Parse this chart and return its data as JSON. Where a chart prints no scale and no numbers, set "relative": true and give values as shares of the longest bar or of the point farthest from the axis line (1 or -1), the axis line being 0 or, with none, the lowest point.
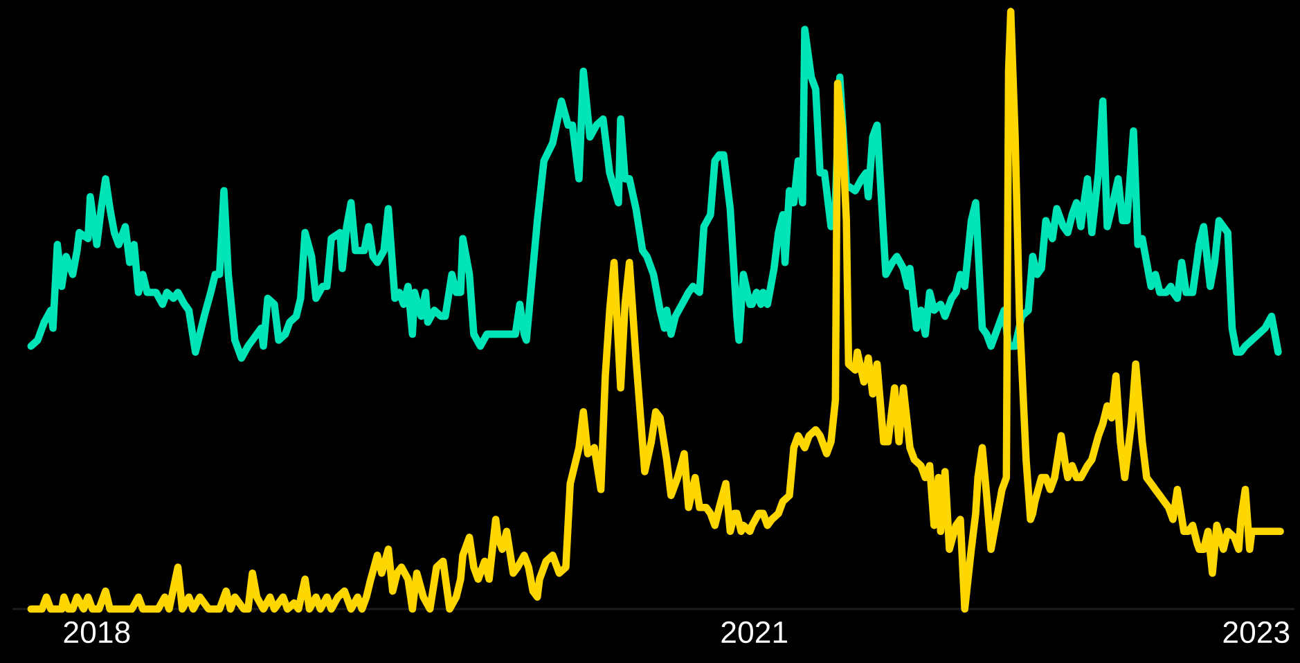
{
  "chart_data": {
    "type": "line",
    "relative": true,
    "xlim": [
      2017.62,
      2023.46
    ],
    "xticks": [
      2018,
      2021,
      {
        "value": 2023.29,
        "label": "2023"
      }
    ],
    "series": [
      {
        "color": "#00e5b8",
        "x": [
          2017.7,
          2017.73,
          2017.76,
          2017.79,
          2017.8,
          2017.82,
          2017.84,
          2017.86,
          2017.89,
          2017.91,
          2017.92,
          2017.96,
          2017.97,
          2018.0,
          2018.02,
          2018.04,
          2018.06,
          2018.08,
          2018.1,
          2018.13,
          2018.15,
          2018.17,
          2018.19,
          2018.21,
          2018.23,
          2018.27,
          2018.3,
          2018.32,
          2018.35,
          2018.37,
          2018.4,
          2018.42,
          2018.45,
          2018.49,
          2018.52,
          2018.54,
          2018.56,
          2018.58,
          2018.6,
          2018.63,
          2018.66,
          2018.69,
          2018.73,
          2018.75,
          2018.76,
          2018.78,
          2018.81,
          2018.83,
          2018.86,
          2018.88,
          2018.91,
          2018.93,
          2018.95,
          2018.98,
          2019.0,
          2019.03,
          2019.05,
          2019.07,
          2019.11,
          2019.12,
          2019.14,
          2019.16,
          2019.18,
          2019.2,
          2019.22,
          2019.24,
          2019.26,
          2019.28,
          2019.31,
          2019.33,
          2019.36,
          2019.38,
          2019.4,
          2019.42,
          2019.44,
          2019.45,
          2019.48,
          2019.5,
          2019.51,
          2019.54,
          2019.57,
          2019.59,
          2019.62,
          2019.64,
          2019.66,
          2019.67,
          2019.7,
          2019.72,
          2019.75,
          2019.78,
          2019.81,
          2019.84,
          2019.88,
          2019.91,
          2019.93,
          2019.95,
          2019.96,
          2020.01,
          2020.04,
          2020.08,
          2020.12,
          2020.15,
          2020.17,
          2020.2,
          2020.22,
          2020.25,
          2020.28,
          2020.31,
          2020.34,
          2020.38,
          2020.39,
          2020.41,
          2020.43,
          2020.46,
          2020.49,
          2020.51,
          2020.54,
          2020.57,
          2020.59,
          2020.6,
          2020.62,
          2020.64,
          2020.67,
          2020.7,
          2020.72,
          2020.75,
          2020.77,
          2020.8,
          2020.82,
          2020.84,
          2020.86,
          2020.89,
          2020.92,
          2020.93,
          2020.95,
          2020.98,
          2020.99,
          2021.01,
          2021.03,
          2021.04,
          2021.06,
          2021.09,
          2021.11,
          2021.13,
          2021.14,
          2021.16,
          2021.18,
          2021.2,
          2021.22,
          2021.23,
          2021.26,
          2021.28,
          2021.3,
          2021.32,
          2021.35,
          2021.37,
          2021.39,
          2021.42,
          2021.46,
          2021.49,
          2021.51,
          2021.52,
          2021.54,
          2021.56,
          2021.6,
          2021.63,
          2021.65,
          2021.68,
          2021.7,
          2021.71,
          2021.74,
          2021.76,
          2021.78,
          2021.8,
          2021.82,
          2021.85,
          2021.87,
          2021.9,
          2021.92,
          2021.94,
          2021.96,
          2021.99,
          2022.01,
          2022.04,
          2022.06,
          2022.08,
          2022.11,
          2022.14,
          2022.16,
          2022.19,
          2022.22,
          2022.25,
          2022.27,
          2022.29,
          2022.31,
          2022.33,
          2022.36,
          2022.38,
          2022.41,
          2022.43,
          2022.45,
          2022.47,
          2022.49,
          2022.5,
          2022.52,
          2022.54,
          2022.57,
          2022.59,
          2022.61,
          2022.63,
          2022.66,
          2022.68,
          2022.7,
          2022.73,
          2022.75,
          2022.77,
          2022.81,
          2022.83,
          2022.85,
          2022.88,
          2022.9,
          2022.91,
          2022.93,
          2022.95,
          2022.97,
          2023.0,
          2023.03,
          2023.05,
          2023.08,
          2023.1,
          2023.12,
          2023.16,
          2023.18,
          2023.2,
          2023.22,
          2023.24,
          2023.27,
          2023.3,
          2023.33,
          2023.36,
          2023.39
        ],
        "values": [
          0.44,
          0.45,
          0.48,
          0.5,
          0.47,
          0.61,
          0.54,
          0.59,
          0.56,
          0.6,
          0.63,
          0.62,
          0.69,
          0.61,
          0.67,
          0.72,
          0.67,
          0.63,
          0.61,
          0.64,
          0.58,
          0.61,
          0.53,
          0.56,
          0.53,
          0.53,
          0.51,
          0.53,
          0.52,
          0.53,
          0.51,
          0.5,
          0.43,
          0.49,
          0.53,
          0.56,
          0.56,
          0.7,
          0.56,
          0.45,
          0.42,
          0.44,
          0.46,
          0.47,
          0.44,
          0.52,
          0.51,
          0.45,
          0.46,
          0.48,
          0.49,
          0.52,
          0.63,
          0.59,
          0.52,
          0.54,
          0.54,
          0.62,
          0.63,
          0.57,
          0.64,
          0.68,
          0.6,
          0.6,
          0.6,
          0.64,
          0.59,
          0.58,
          0.6,
          0.67,
          0.52,
          0.53,
          0.51,
          0.54,
          0.46,
          0.53,
          0.49,
          0.53,
          0.48,
          0.5,
          0.49,
          0.49,
          0.56,
          0.53,
          0.53,
          0.62,
          0.56,
          0.46,
          0.44,
          0.46,
          0.46,
          0.46,
          0.46,
          0.46,
          0.51,
          0.46,
          0.45,
          0.65,
          0.75,
          0.78,
          0.85,
          0.81,
          0.81,
          0.72,
          0.9,
          0.79,
          0.81,
          0.82,
          0.73,
          0.68,
          0.82,
          0.72,
          0.72,
          0.67,
          0.6,
          0.59,
          0.56,
          0.5,
          0.47,
          0.5,
          0.46,
          0.49,
          0.51,
          0.53,
          0.54,
          0.53,
          0.64,
          0.66,
          0.75,
          0.76,
          0.76,
          0.67,
          0.49,
          0.45,
          0.56,
          0.51,
          0.51,
          0.53,
          0.51,
          0.53,
          0.51,
          0.57,
          0.63,
          0.66,
          0.58,
          0.7,
          0.68,
          0.75,
          0.68,
          0.97,
          0.89,
          0.87,
          0.73,
          0.73,
          0.64,
          0.68,
          0.89,
          0.71,
          0.7,
          0.72,
          0.73,
          0.69,
          0.79,
          0.81,
          0.56,
          0.58,
          0.59,
          0.57,
          0.54,
          0.57,
          0.47,
          0.5,
          0.46,
          0.53,
          0.5,
          0.51,
          0.49,
          0.52,
          0.53,
          0.56,
          0.54,
          0.65,
          0.68,
          0.47,
          0.46,
          0.44,
          0.47,
          0.5,
          0.44,
          0.44,
          0.49,
          0.5,
          0.59,
          0.56,
          0.57,
          0.65,
          0.62,
          0.67,
          0.64,
          0.63,
          0.66,
          0.68,
          0.64,
          0.67,
          0.72,
          0.63,
          0.73,
          0.85,
          0.64,
          0.67,
          0.72,
          0.65,
          0.65,
          0.8,
          0.61,
          0.62,
          0.54,
          0.56,
          0.53,
          0.53,
          0.54,
          0.53,
          0.52,
          0.58,
          0.53,
          0.53,
          0.61,
          0.64,
          0.54,
          0.58,
          0.65,
          0.63,
          0.47,
          0.43,
          0.43,
          0.44,
          0.45,
          0.46,
          0.47,
          0.49,
          0.43
        ]
      },
      {
        "color": "#ffd700",
        "x": [
          2017.7,
          2017.75,
          2017.77,
          2017.79,
          2017.84,
          2017.85,
          2017.87,
          2017.89,
          2017.91,
          2017.94,
          2017.96,
          2017.98,
          2018.01,
          2018.04,
          2018.06,
          2018.1,
          2018.16,
          2018.19,
          2018.21,
          2018.28,
          2018.31,
          2018.33,
          2018.37,
          2018.39,
          2018.42,
          2018.44,
          2018.47,
          2018.51,
          2018.56,
          2018.59,
          2018.61,
          2018.63,
          2018.67,
          2018.69,
          2018.71,
          2018.73,
          2018.76,
          2018.79,
          2018.81,
          2018.85,
          2018.87,
          2018.9,
          2018.92,
          2018.95,
          2018.97,
          2019.0,
          2019.02,
          2019.05,
          2019.07,
          2019.1,
          2019.13,
          2019.16,
          2019.19,
          2019.21,
          2019.23,
          2019.25,
          2019.28,
          2019.3,
          2019.33,
          2019.35,
          2019.37,
          2019.39,
          2019.42,
          2019.44,
          2019.46,
          2019.49,
          2019.52,
          2019.55,
          2019.58,
          2019.61,
          2019.64,
          2019.66,
          2019.67,
          2019.7,
          2019.72,
          2019.74,
          2019.77,
          2019.79,
          2019.82,
          2019.83,
          2019.85,
          2019.87,
          2019.9,
          2019.92,
          2019.95,
          2019.97,
          2019.99,
          2020.01,
          2020.02,
          2020.05,
          2020.08,
          2020.11,
          2020.14,
          2020.16,
          2020.2,
          2020.22,
          2020.24,
          2020.27,
          2020.3,
          2020.32,
          2020.34,
          2020.36,
          2020.39,
          2020.41,
          2020.43,
          2020.46,
          2020.5,
          2020.53,
          2020.55,
          2020.57,
          2020.6,
          2020.62,
          2020.65,
          2020.68,
          2020.7,
          2020.73,
          2020.75,
          2020.78,
          2020.8,
          2020.82,
          2020.84,
          2020.87,
          2020.89,
          2020.91,
          2020.92,
          2020.94,
          2020.95,
          2020.98,
          2020.99,
          2021.02,
          2021.04,
          2021.06,
          2021.08,
          2021.11,
          2021.13,
          2021.16,
          2021.18,
          2021.2,
          2021.23,
          2021.25,
          2021.28,
          2021.3,
          2021.33,
          2021.35,
          2021.37,
          2021.38,
          2021.4,
          2021.42,
          2021.43,
          2021.46,
          2021.47,
          2021.5,
          2021.52,
          2021.54,
          2021.56,
          2021.59,
          2021.61,
          2021.64,
          2021.66,
          2021.68,
          2021.71,
          2021.73,
          2021.76,
          2021.78,
          2021.8,
          2021.82,
          2021.84,
          2021.85,
          2021.87,
          2021.89,
          2021.92,
          2021.94,
          2021.96,
          2021.99,
          2022.01,
          2022.02,
          2022.04,
          2022.06,
          2022.08,
          2022.11,
          2022.13,
          2022.15,
          2022.16,
          2022.17,
          2022.19,
          2022.21,
          2022.24,
          2022.26,
          2022.27,
          2022.28,
          2022.31,
          2022.33,
          2022.35,
          2022.37,
          2022.4,
          2022.42,
          2022.43,
          2022.45,
          2022.47,
          2022.49,
          2022.52,
          2022.54,
          2022.57,
          2022.59,
          2022.61,
          2022.63,
          2022.65,
          2022.67,
          2022.69,
          2022.72,
          2022.74,
          2022.77,
          2022.79,
          2022.81,
          2022.83,
          2022.85,
          2022.87,
          2022.89,
          2022.91,
          2022.93,
          2022.96,
          2022.98,
          2023.0,
          2023.02,
          2023.03,
          2023.05,
          2023.07,
          2023.09,
          2023.11,
          2023.14,
          2023.16,
          2023.19,
          2023.21,
          2023.22,
          2023.24,
          2023.26,
          2023.27,
          2023.29,
          2023.32,
          2023.4
        ],
        "values": [
          0,
          0,
          0.02,
          0,
          0,
          0.02,
          0,
          0,
          0.02,
          0,
          0.02,
          0,
          0,
          0.03,
          0,
          0,
          0,
          0.02,
          0,
          0,
          0.02,
          0,
          0.07,
          0,
          0.02,
          0,
          0.02,
          0,
          0,
          0.03,
          0,
          0.02,
          0,
          0,
          0.06,
          0.02,
          0,
          0.02,
          0,
          0.02,
          0,
          0.01,
          0,
          0.05,
          0,
          0.02,
          0,
          0.02,
          0,
          0.02,
          0.03,
          0,
          0.02,
          0,
          0.02,
          0.05,
          0.09,
          0.06,
          0.1,
          0.03,
          0.06,
          0.07,
          0.05,
          0,
          0.06,
          0.02,
          0,
          0.07,
          0.08,
          0,
          0.02,
          0.05,
          0.09,
          0.12,
          0.07,
          0.05,
          0.08,
          0.05,
          0.15,
          0.12,
          0.1,
          0.13,
          0.06,
          0.07,
          0.09,
          0.07,
          0.03,
          0.02,
          0.05,
          0.08,
          0.09,
          0.06,
          0.07,
          0.21,
          0.27,
          0.33,
          0.26,
          0.27,
          0.2,
          0.39,
          0.5,
          0.58,
          0.37,
          0.51,
          0.58,
          0.42,
          0.23,
          0.28,
          0.33,
          0.32,
          0.25,
          0.19,
          0.22,
          0.26,
          0.17,
          0.22,
          0.17,
          0.17,
          0.16,
          0.14,
          0.17,
          0.21,
          0.13,
          0.16,
          0.16,
          0.13,
          0.14,
          0.13,
          0.14,
          0.16,
          0.16,
          0.14,
          0.15,
          0.16,
          0.18,
          0.19,
          0.27,
          0.29,
          0.27,
          0.29,
          0.3,
          0.29,
          0.26,
          0.28,
          0.35,
          0.88,
          0.81,
          0.65,
          0.41,
          0.4,
          0.43,
          0.38,
          0.42,
          0.36,
          0.41,
          0.28,
          0.28,
          0.37,
          0.28,
          0.37,
          0.27,
          0.25,
          0.24,
          0.22,
          0.24,
          0.14,
          0.22,
          0.13,
          0.23,
          0.1,
          0.14,
          0.15,
          0,
          0.1,
          0.16,
          0.22,
          0.27,
          0.19,
          0.1,
          0.16,
          0.2,
          0.22,
          0.9,
          1.0,
          0.79,
          0.49,
          0.25,
          0.15,
          0.16,
          0.18,
          0.22,
          0.22,
          0.2,
          0.22,
          0.29,
          0.24,
          0.22,
          0.24,
          0.22,
          0.22,
          0.24,
          0.25,
          0.29,
          0.31,
          0.34,
          0.32,
          0.39,
          0.28,
          0.22,
          0.31,
          0.41,
          0.28,
          0.22,
          0.21,
          0.2,
          0.19,
          0.18,
          0.17,
          0.15,
          0.2,
          0.13,
          0.13,
          0.14,
          0.11,
          0.1,
          0.1,
          0.13,
          0.06,
          0.14,
          0.1,
          0.13,
          0.12,
          0.1,
          0.15,
          0.2,
          0.1,
          0.13,
          0.13,
          0.13,
          0.13
        ]
      }
    ]
  }
}
